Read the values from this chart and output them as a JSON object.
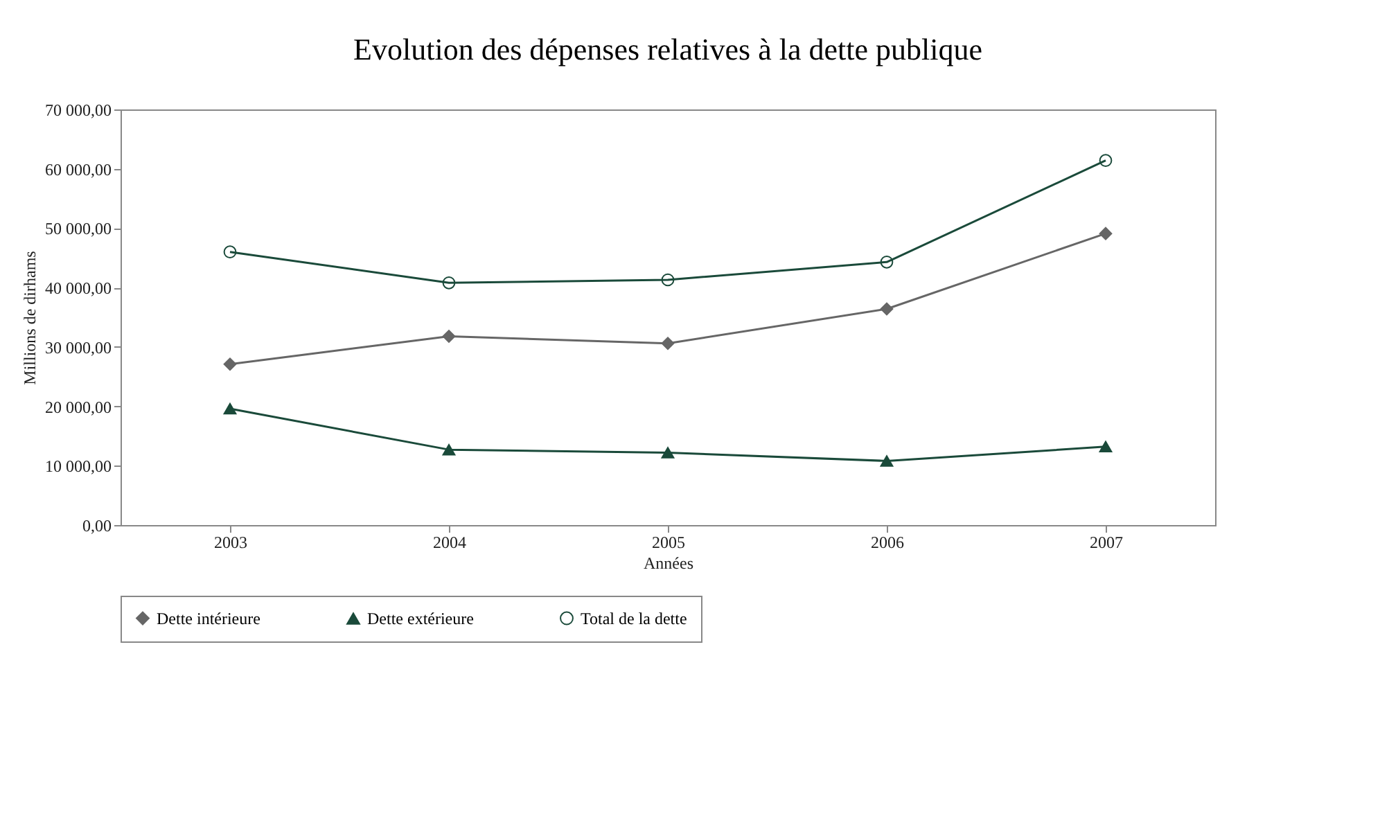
{
  "chart_data": {
    "type": "line",
    "title": "Evolution des dépenses relatives à la dette publique",
    "xlabel": "Années",
    "ylabel": "Millions de dirhams",
    "categories": [
      "2003",
      "2004",
      "2005",
      "2006",
      "2007"
    ],
    "series": [
      {
        "name": "Dette intérieure",
        "color": "#666666",
        "marker": "diamond",
        "values": [
          27100,
          31800,
          30600,
          36400,
          49100
        ]
      },
      {
        "name": "Dette extérieure",
        "color": "#1a4a3a",
        "marker": "triangle",
        "values": [
          19600,
          12700,
          12200,
          10800,
          13200
        ]
      },
      {
        "name": "Total de la dette",
        "color": "#1a4a3a",
        "marker": "circle",
        "values": [
          46000,
          40800,
          41300,
          44300,
          61400
        ]
      }
    ],
    "ylim": [
      0,
      70000
    ],
    "yticks": [
      {
        "value": 0,
        "label": "0,00"
      },
      {
        "value": 10000,
        "label": "10 000,00"
      },
      {
        "value": 20000,
        "label": "20 000,00"
      },
      {
        "value": 30000,
        "label": "30 000,00"
      },
      {
        "value": 40000,
        "label": "40 000,00"
      },
      {
        "value": 50000,
        "label": "50 000,00"
      },
      {
        "value": 60000,
        "label": "60 000,00"
      },
      {
        "value": 70000,
        "label": "70 000,00"
      }
    ],
    "grid": false,
    "legend": "bottom"
  }
}
